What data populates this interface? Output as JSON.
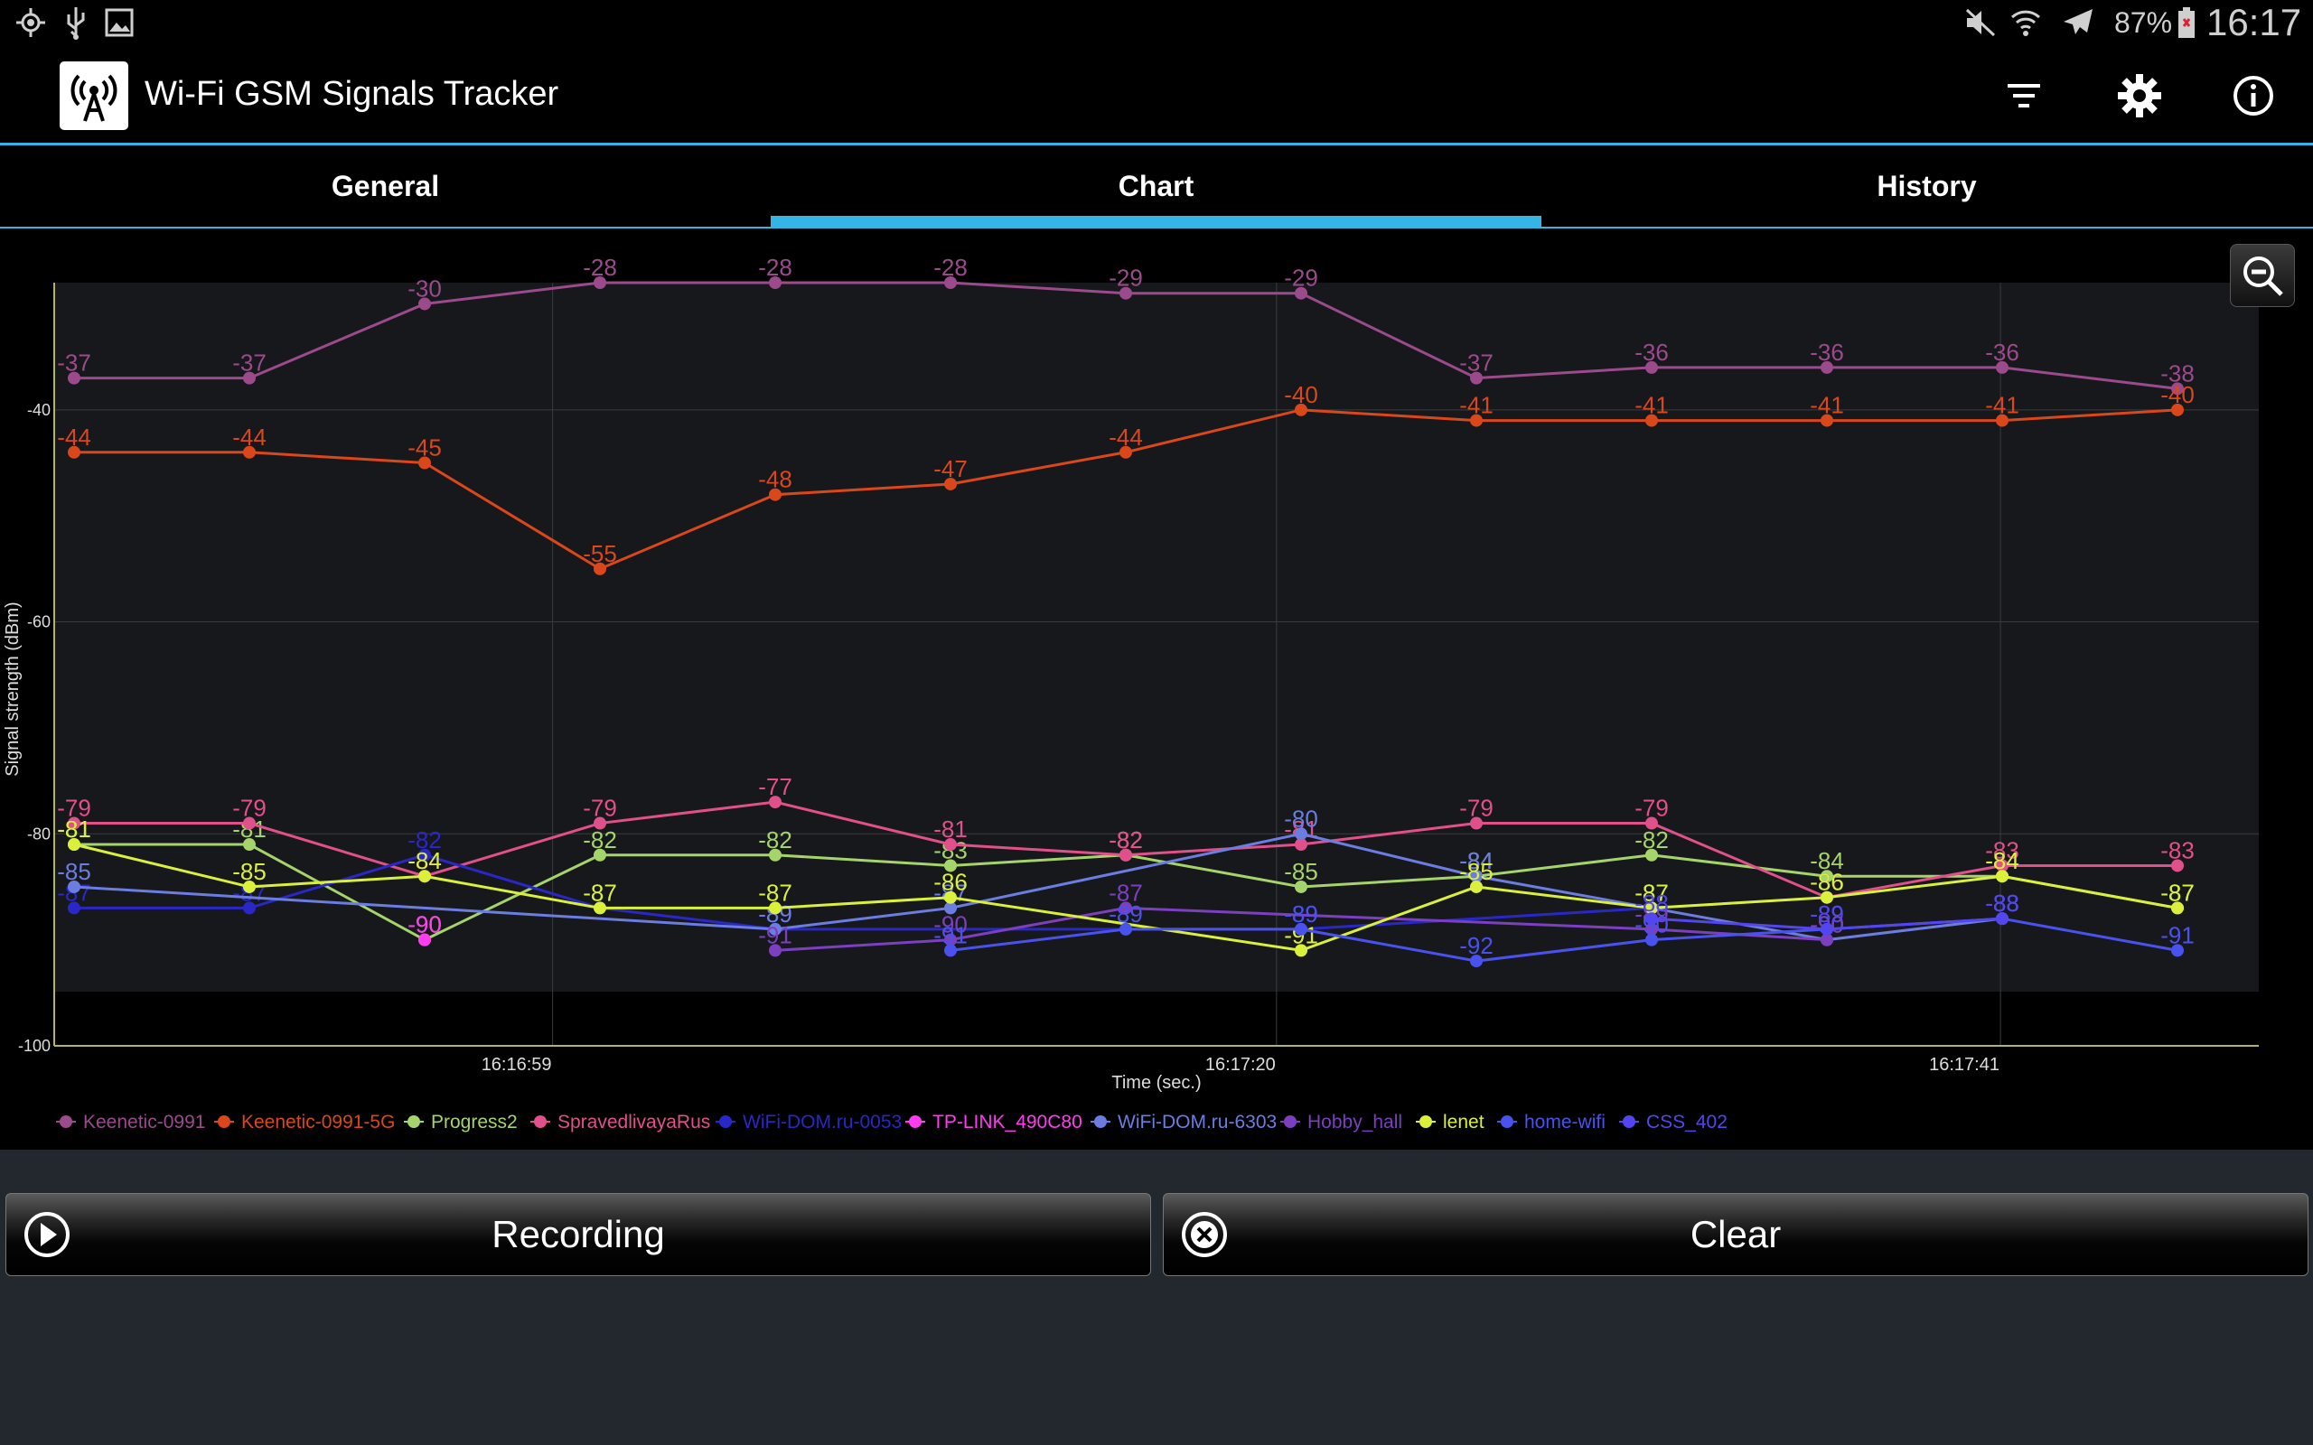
{
  "status_bar": {
    "battery": "87%",
    "time": "16:17",
    "icons": [
      "location-icon",
      "usb-icon",
      "gallery-icon",
      "mute-icon",
      "wifi-icon",
      "airplane-icon",
      "battery-icon"
    ]
  },
  "app": {
    "title": "Wi-Fi GSM Signals Tracker",
    "actions": [
      "filter-icon",
      "settings-icon",
      "info-icon"
    ]
  },
  "tabs": [
    {
      "label": "General",
      "active": false
    },
    {
      "label": "Chart",
      "active": true
    },
    {
      "label": "History",
      "active": false
    }
  ],
  "buttons": {
    "recording": "Recording",
    "clear": "Clear"
  },
  "chart_data": {
    "type": "line",
    "xlabel": "Time (sec.)",
    "ylabel": "Signal strength (dBm)",
    "ylim": [
      -100,
      -28
    ],
    "yticks": [
      -40,
      -60,
      -80,
      -100
    ],
    "xticks": [
      "16:16:59",
      "16:17:20",
      "16:17:41"
    ],
    "grid": true,
    "legend_position": "bottom",
    "x_samples": [
      0,
      1,
      2,
      3,
      4,
      5,
      6,
      7,
      8,
      9,
      10,
      11,
      12
    ],
    "series": [
      {
        "name": "Keenetic-0991",
        "color": "#9b4a8c",
        "values": [
          -37,
          -37,
          -30,
          -28,
          -28,
          -28,
          -29,
          -29,
          -37,
          -36,
          -36,
          -36,
          -38
        ]
      },
      {
        "name": "Keenetic-0991-5G",
        "color": "#d9471b",
        "values": [
          -44,
          -44,
          -45,
          -55,
          -48,
          -47,
          -44,
          -40,
          -41,
          -41,
          -41,
          -41,
          -40
        ]
      },
      {
        "name": "Progress2",
        "color": "#a5d46a",
        "values": [
          -81,
          -81,
          -90,
          -82,
          -82,
          -83,
          -82,
          -85,
          -84,
          -82,
          -84,
          -84,
          -87
        ]
      },
      {
        "name": "SpravedlivayaRus",
        "color": "#e0508a",
        "values": [
          -79,
          -79,
          -84,
          -79,
          -77,
          -81,
          -82,
          -81,
          -79,
          -79,
          -86,
          -83,
          -83
        ]
      },
      {
        "name": "WiFi-DOM.ru-0053",
        "color": "#2a27c9",
        "values": [
          -87,
          -87,
          -82,
          -87,
          -89,
          null,
          null,
          -89,
          null,
          -87,
          -86,
          null,
          null
        ]
      },
      {
        "name": "TP-LINK_490C80",
        "color": "#ff3cf0",
        "values": [
          null,
          null,
          -90,
          null,
          null,
          null,
          null,
          null,
          null,
          null,
          null,
          null,
          null
        ]
      },
      {
        "name": "WiFi-DOM.ru-6303",
        "color": "#6b7de0",
        "values": [
          -85,
          null,
          null,
          null,
          -89,
          -87,
          null,
          -80,
          -84,
          -87,
          -90,
          -88,
          null
        ]
      },
      {
        "name": "Hobby_hall",
        "color": "#7b3fc0",
        "values": [
          null,
          null,
          null,
          null,
          -91,
          -90,
          -87,
          null,
          null,
          -89,
          -90,
          null,
          null
        ]
      },
      {
        "name": "lenet",
        "color": "#dbf03a",
        "values": [
          -81,
          -85,
          -84,
          -87,
          -87,
          -86,
          null,
          -91,
          -85,
          -87,
          -86,
          -84,
          -87
        ]
      },
      {
        "name": "home-wifi",
        "color": "#4a52ee",
        "values": [
          null,
          null,
          null,
          null,
          null,
          -91,
          -89,
          -89,
          -92,
          -90,
          -89,
          -88,
          -91
        ]
      },
      {
        "name": "CSS_402",
        "color": "#5346f0",
        "values": [
          null,
          null,
          null,
          null,
          null,
          null,
          null,
          null,
          null,
          -88,
          -89,
          -88,
          null
        ]
      }
    ]
  }
}
